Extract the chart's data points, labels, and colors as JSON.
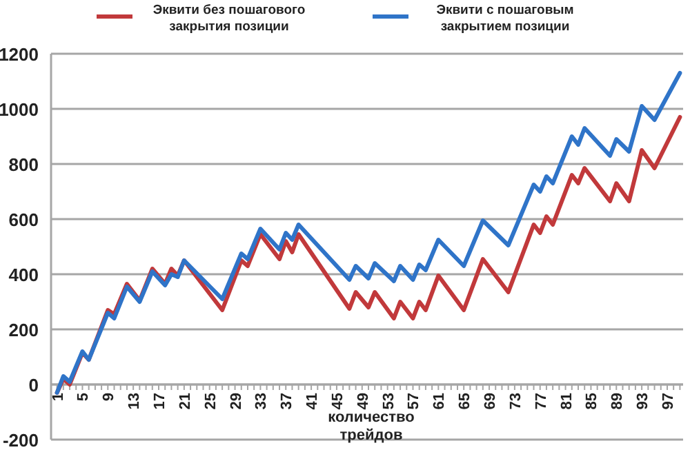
{
  "chart_data": {
    "type": "line",
    "xlabel": "количество трейдов",
    "legend": "top",
    "grid": "y",
    "line_style": "solid",
    "marker": "none",
    "xlim": [
      0.5,
      99.5
    ],
    "ylim": [
      -200,
      1200
    ],
    "yticks": [
      -200,
      0,
      200,
      400,
      600,
      800,
      1000,
      1200
    ],
    "xticks": [
      1,
      {
        "value": 2,
        "label": null
      },
      {
        "value": 3,
        "label": null
      },
      {
        "value": 4,
        "label": null
      },
      5,
      {
        "value": 6,
        "label": null
      },
      {
        "value": 7,
        "label": null
      },
      {
        "value": 8,
        "label": null
      },
      9,
      {
        "value": 10,
        "label": null
      },
      {
        "value": 11,
        "label": null
      },
      {
        "value": 12,
        "label": null
      },
      13,
      {
        "value": 14,
        "label": null
      },
      {
        "value": 15,
        "label": null
      },
      {
        "value": 16,
        "label": null
      },
      17,
      {
        "value": 18,
        "label": null
      },
      {
        "value": 19,
        "label": null
      },
      {
        "value": 20,
        "label": null
      },
      21,
      {
        "value": 22,
        "label": null
      },
      {
        "value": 23,
        "label": null
      },
      {
        "value": 24,
        "label": null
      },
      25,
      {
        "value": 26,
        "label": null
      },
      {
        "value": 27,
        "label": null
      },
      {
        "value": 28,
        "label": null
      },
      29,
      {
        "value": 30,
        "label": null
      },
      {
        "value": 31,
        "label": null
      },
      {
        "value": 32,
        "label": null
      },
      33,
      {
        "value": 34,
        "label": null
      },
      {
        "value": 35,
        "label": null
      },
      {
        "value": 36,
        "label": null
      },
      37,
      {
        "value": 38,
        "label": null
      },
      {
        "value": 39,
        "label": null
      },
      {
        "value": 40,
        "label": null
      },
      41,
      {
        "value": 42,
        "label": null
      },
      {
        "value": 43,
        "label": null
      },
      {
        "value": 44,
        "label": null
      },
      45,
      {
        "value": 46,
        "label": null
      },
      {
        "value": 47,
        "label": null
      },
      {
        "value": 48,
        "label": null
      },
      49,
      {
        "value": 50,
        "label": null
      },
      {
        "value": 51,
        "label": null
      },
      {
        "value": 52,
        "label": null
      },
      53,
      {
        "value": 54,
        "label": null
      },
      {
        "value": 55,
        "label": null
      },
      {
        "value": 56,
        "label": null
      },
      57,
      {
        "value": 58,
        "label": null
      },
      {
        "value": 59,
        "label": null
      },
      {
        "value": 60,
        "label": null
      },
      61,
      {
        "value": 62,
        "label": null
      },
      {
        "value": 63,
        "label": null
      },
      {
        "value": 64,
        "label": null
      },
      65,
      {
        "value": 66,
        "label": null
      },
      {
        "value": 67,
        "label": null
      },
      {
        "value": 68,
        "label": null
      },
      69,
      {
        "value": 70,
        "label": null
      },
      {
        "value": 71,
        "label": null
      },
      {
        "value": 72,
        "label": null
      },
      73,
      {
        "value": 74,
        "label": null
      },
      {
        "value": 75,
        "label": null
      },
      {
        "value": 76,
        "label": null
      },
      77,
      {
        "value": 78,
        "label": null
      },
      {
        "value": 79,
        "label": null
      },
      {
        "value": 80,
        "label": null
      },
      81,
      {
        "value": 82,
        "label": null
      },
      {
        "value": 83,
        "label": null
      },
      {
        "value": 84,
        "label": null
      },
      85,
      {
        "value": 86,
        "label": null
      },
      {
        "value": 87,
        "label": null
      },
      {
        "value": 88,
        "label": null
      },
      89,
      {
        "value": 90,
        "label": null
      },
      {
        "value": 91,
        "label": null
      },
      {
        "value": 92,
        "label": null
      },
      93,
      {
        "value": 94,
        "label": null
      },
      {
        "value": 95,
        "label": null
      },
      {
        "value": 96,
        "label": null
      },
      97,
      {
        "value": 98,
        "label": null
      },
      {
        "value": 99,
        "label": null
      }
    ],
    "series": [
      {
        "name": "Эквити без пошагового закрытия позиции",
        "color": "#c1393b",
        "x": [
          1,
          2,
          3,
          5,
          6,
          9,
          10,
          12,
          14,
          16,
          18,
          19,
          20,
          21,
          27,
          30,
          31,
          33,
          36,
          37,
          38,
          39,
          47,
          48,
          50,
          51,
          54,
          55,
          57,
          58,
          59,
          61,
          65,
          68,
          72,
          76,
          77,
          78,
          79,
          82,
          83,
          84,
          88,
          89,
          91,
          93,
          95,
          99
        ],
        "values": [
          -30,
          20,
          0,
          115,
          90,
          270,
          255,
          365,
          305,
          420,
          365,
          420,
          395,
          450,
          270,
          450,
          430,
          545,
          455,
          520,
          480,
          545,
          275,
          335,
          280,
          335,
          240,
          300,
          240,
          300,
          270,
          395,
          270,
          455,
          335,
          580,
          550,
          610,
          580,
          760,
          730,
          785,
          665,
          730,
          665,
          850,
          785,
          970
        ]
      },
      {
        "name": "Эквити с пошаговым закрытием позиции",
        "color": "#2f74c8",
        "x": [
          1,
          2,
          3,
          5,
          6,
          9,
          10,
          12,
          14,
          16,
          18,
          19,
          20,
          21,
          27,
          30,
          31,
          33,
          36,
          37,
          38,
          39,
          47,
          48,
          50,
          51,
          54,
          55,
          57,
          58,
          59,
          61,
          65,
          68,
          72,
          76,
          77,
          78,
          79,
          82,
          83,
          84,
          88,
          89,
          91,
          93,
          95,
          99
        ],
        "values": [
          -30,
          30,
          10,
          120,
          90,
          260,
          240,
          355,
          300,
          410,
          360,
          400,
          390,
          450,
          310,
          475,
          455,
          565,
          490,
          550,
          525,
          580,
          380,
          430,
          385,
          440,
          375,
          430,
          380,
          435,
          415,
          525,
          430,
          595,
          505,
          725,
          700,
          755,
          730,
          900,
          870,
          930,
          830,
          890,
          845,
          1010,
          960,
          1130
        ]
      }
    ]
  }
}
